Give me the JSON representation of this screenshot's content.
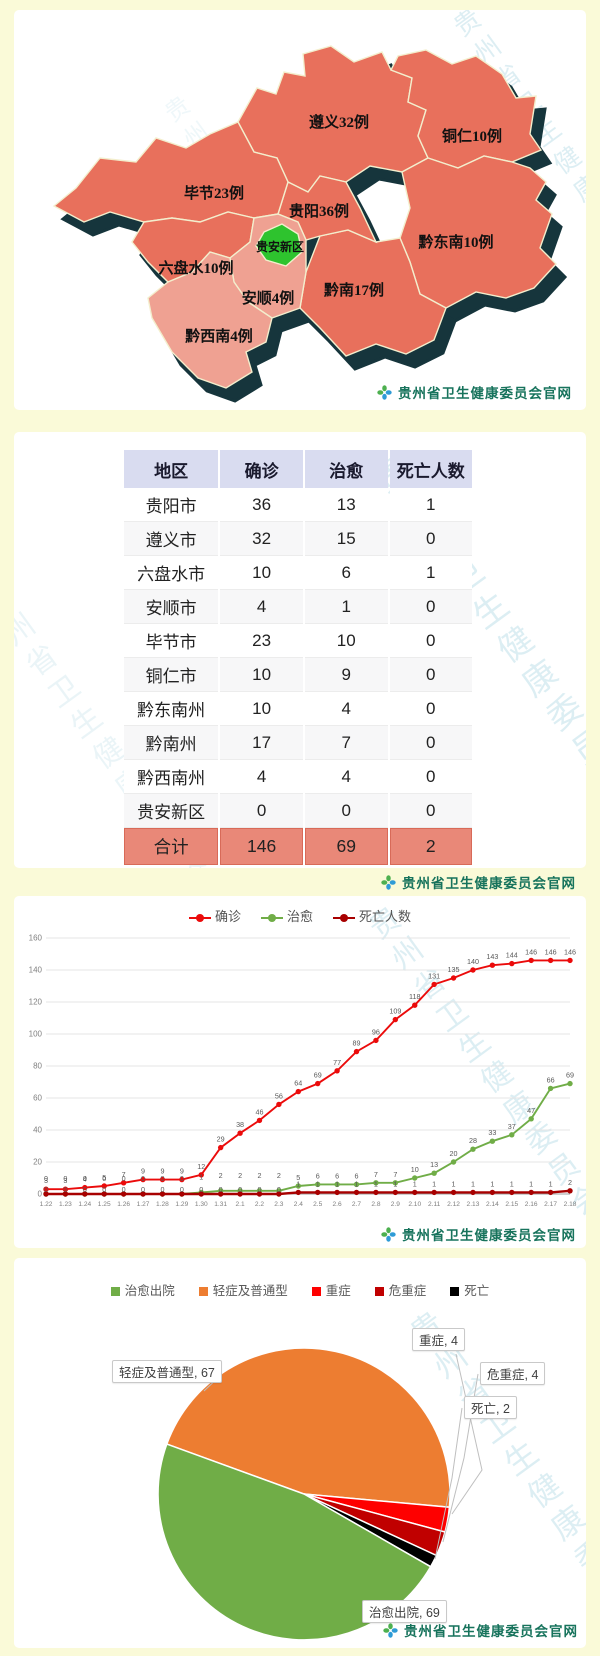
{
  "watermark": "贵州省卫生健康委员会",
  "footer": {
    "label": "贵州省卫生健康委员会官网"
  },
  "colors": {
    "page_bg": "#fafad8",
    "panel_bg": "#ffffff",
    "map_high": "#e8705c",
    "map_low": "#efa192",
    "map_new_area": "#2ec32e",
    "map_extrude": "#16353c",
    "table_header_bg": "#d9dcf0",
    "table_total_bg": "#e98878",
    "footer_text": "#17735c",
    "watermark": "#8fc8d8"
  },
  "map": {
    "regions": [
      {
        "id": "zunyi",
        "label": "遵义32例",
        "level": "high"
      },
      {
        "id": "tongren",
        "label": "铜仁10例",
        "level": "high"
      },
      {
        "id": "bijie",
        "label": "毕节23例",
        "level": "high"
      },
      {
        "id": "guiyang",
        "label": "贵阳36例",
        "level": "high"
      },
      {
        "id": "qiandongnan",
        "label": "黔东南10例",
        "level": "high"
      },
      {
        "id": "qiannan",
        "label": "黔南17例",
        "level": "high"
      },
      {
        "id": "liupanshui",
        "label": "六盘水10例",
        "level": "high"
      },
      {
        "id": "anshun",
        "label": "安顺4例",
        "level": "low"
      },
      {
        "id": "qianxinan",
        "label": "黔西南4例",
        "level": "low"
      },
      {
        "id": "guian",
        "label": "贵安新区",
        "level": "new_area"
      }
    ]
  },
  "table": {
    "headers": [
      "地区",
      "确诊",
      "治愈",
      "死亡人数"
    ],
    "rows": [
      [
        "贵阳市",
        "36",
        "13",
        "1"
      ],
      [
        "遵义市",
        "32",
        "15",
        "0"
      ],
      [
        "六盘水市",
        "10",
        "6",
        "1"
      ],
      [
        "安顺市",
        "4",
        "1",
        "0"
      ],
      [
        "毕节市",
        "23",
        "10",
        "0"
      ],
      [
        "铜仁市",
        "10",
        "9",
        "0"
      ],
      [
        "黔东南州",
        "10",
        "4",
        "0"
      ],
      [
        "黔南州",
        "17",
        "7",
        "0"
      ],
      [
        "黔西南州",
        "4",
        "4",
        "0"
      ],
      [
        "贵安新区",
        "0",
        "0",
        "0"
      ]
    ],
    "total_row": [
      "合计",
      "146",
      "69",
      "2"
    ]
  },
  "chart_data": [
    {
      "type": "line",
      "x": [
        "1.22",
        "1.23",
        "1.24",
        "1.25",
        "1.26",
        "1.27",
        "1.28",
        "1.29",
        "1.30",
        "1.31",
        "2.1",
        "2.2",
        "2.3",
        "2.4",
        "2.5",
        "2.6",
        "2.7",
        "2.8",
        "2.9",
        "2.10",
        "2.11",
        "2.12",
        "2.13",
        "2.14",
        "2.15",
        "2.16",
        "2.17",
        "2.18"
      ],
      "series": [
        {
          "name": "确诊",
          "color": "#eb0b0b",
          "values": [
            3,
            3,
            4,
            5,
            7,
            9,
            9,
            9,
            12,
            29,
            38,
            46,
            56,
            64,
            69,
            77,
            89,
            96,
            109,
            118,
            131,
            135,
            140,
            143,
            144,
            146,
            146,
            146
          ]
        },
        {
          "name": "治愈",
          "color": "#70ad47",
          "values": [
            0,
            0,
            0,
            0,
            0,
            0,
            0,
            0,
            1,
            2,
            2,
            2,
            2,
            5,
            6,
            6,
            6,
            7,
            7,
            10,
            13,
            20,
            28,
            33,
            37,
            47,
            66,
            69
          ]
        },
        {
          "name": "死亡人数",
          "color": "#a80000",
          "values": [
            0,
            0,
            0,
            0,
            0,
            0,
            0,
            0,
            0,
            0,
            0,
            0,
            0,
            1,
            1,
            1,
            1,
            1,
            1,
            1,
            1,
            1,
            1,
            1,
            1,
            1,
            1,
            2
          ]
        }
      ],
      "ylim": [
        0,
        160
      ],
      "yticks": [
        0,
        20,
        40,
        60,
        80,
        100,
        120,
        140,
        160
      ],
      "grid": true,
      "legend_position": "top",
      "data_labels": true
    },
    {
      "type": "pie",
      "slices": [
        {
          "name": "治愈出院",
          "value": 69,
          "color": "#70ad47"
        },
        {
          "name": "轻症及普通型",
          "value": 67,
          "color": "#ed7d31"
        },
        {
          "name": "重症",
          "value": 4,
          "color": "#fe0000"
        },
        {
          "name": "危重症",
          "value": 4,
          "color": "#c00000"
        },
        {
          "name": "死亡",
          "value": 2,
          "color": "#000000"
        }
      ],
      "draw_order": [
        1,
        2,
        3,
        4,
        0
      ],
      "start_angle_deg": 290,
      "legend_position": "top",
      "callouts": [
        {
          "text": "轻症及普通型, 67"
        },
        {
          "text": "重症, 4"
        },
        {
          "text": "危重症, 4"
        },
        {
          "text": "死亡, 2"
        },
        {
          "text": "治愈出院, 69"
        }
      ]
    }
  ]
}
